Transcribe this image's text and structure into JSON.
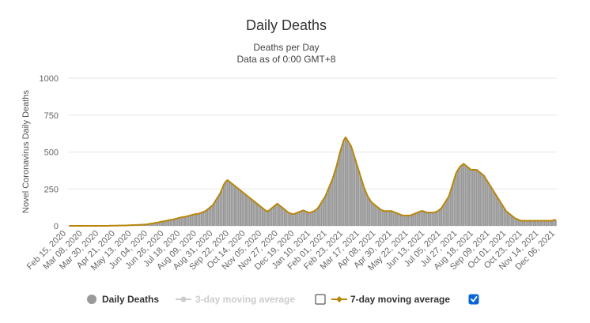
{
  "chart_data": {
    "type": "bar",
    "title": "Daily Deaths",
    "subtitle_line1": "Deaths per Day",
    "subtitle_line2": "Data as of 0:00 GMT+8",
    "ylabel": "Novel Coronavirus Daily Deaths",
    "xlabel": "",
    "ylim": [
      0,
      1000
    ],
    "yticks": [
      "0",
      "250",
      "500",
      "750",
      "1000"
    ],
    "grid": true,
    "x_tick_labels": [
      "Feb 15, 2020",
      "Mar 08, 2020",
      "Mar 30, 2020",
      "Apr 21, 2020",
      "May 13, 2020",
      "Jun 04, 2020",
      "Jun 26, 2020",
      "Jul 18, 2020",
      "Aug 09, 2020",
      "Aug 31, 2020",
      "Sep 22, 2020",
      "Oct 14, 2020",
      "Nov 05, 2020",
      "Nov 27, 2020",
      "Dec 19, 2020",
      "Jan 10, 2021",
      "Feb 01, 2021",
      "Feb 23, 2021",
      "Mar 17, 2021",
      "Apr 08, 2021",
      "Apr 30, 2021",
      "May 22, 2021",
      "Jun 13, 2021",
      "Jul 05, 2021",
      "Jul 27, 2021",
      "Aug 18, 2021",
      "Sep 09, 2021",
      "Oct 01, 2021",
      "Oct 23, 2021",
      "Nov 14, 2021",
      "Dec 06, 2021"
    ],
    "x_start": "2020-02-15",
    "x_end": "2021-12-20",
    "series": [
      {
        "name": "Daily Deaths",
        "type": "bar",
        "color": "#999999",
        "values": [
          0,
          0,
          0,
          0,
          0,
          0,
          0,
          0,
          0,
          0,
          0,
          0,
          0,
          0,
          0,
          0,
          0,
          0,
          0,
          0,
          0,
          0,
          1,
          1,
          1,
          1,
          2,
          2,
          2,
          3,
          3,
          3,
          4,
          4,
          5,
          5,
          6,
          6,
          7,
          8,
          8,
          9,
          10,
          12,
          14,
          16,
          18,
          20,
          22,
          25,
          28,
          30,
          32,
          35,
          38,
          40,
          42,
          45,
          48,
          52,
          55,
          58,
          60,
          62,
          65,
          68,
          72,
          75,
          78,
          80,
          82,
          85,
          90,
          95,
          100,
          110,
          120,
          130,
          140,
          160,
          180,
          200,
          220,
          250,
          280,
          300,
          310,
          300,
          290,
          280,
          270,
          260,
          250,
          240,
          230,
          220,
          210,
          200,
          190,
          180,
          170,
          160,
          150,
          140,
          130,
          120,
          110,
          100,
          100,
          110,
          120,
          130,
          140,
          150,
          140,
          130,
          120,
          110,
          100,
          90,
          85,
          80,
          80,
          85,
          90,
          95,
          100,
          105,
          100,
          95,
          90,
          90,
          95,
          100,
          110,
          120,
          140,
          160,
          180,
          200,
          230,
          260,
          290,
          320,
          360,
          400,
          450,
          500,
          540,
          580,
          600,
          580,
          560,
          540,
          500,
          460,
          420,
          380,
          340,
          300,
          260,
          230,
          200,
          180,
          160,
          150,
          140,
          130,
          120,
          110,
          105,
          100,
          100,
          100,
          100,
          100,
          95,
          90,
          85,
          80,
          75,
          70,
          70,
          70,
          70,
          70,
          75,
          80,
          85,
          90,
          95,
          100,
          100,
          95,
          90,
          90,
          90,
          90,
          90,
          95,
          100,
          110,
          120,
          140,
          160,
          180,
          200,
          240,
          280,
          320,
          360,
          380,
          400,
          410,
          420,
          410,
          400,
          390,
          380,
          380,
          380,
          380,
          370,
          360,
          350,
          340,
          320,
          300,
          280,
          260,
          240,
          220,
          200,
          180,
          160,
          140,
          120,
          100,
          90,
          80,
          70,
          60,
          50,
          45,
          40,
          35,
          35,
          35,
          35,
          35,
          35,
          35,
          35,
          35,
          35,
          35,
          35,
          35,
          35,
          35,
          35,
          35,
          35,
          40,
          40
        ]
      },
      {
        "name": "3-day moving average",
        "type": "line",
        "color": "#cccccc",
        "enabled": false,
        "checked": false
      },
      {
        "name": "7-day moving average",
        "type": "line",
        "color": "#b8860b",
        "enabled": true,
        "checked": true,
        "values": [
          0,
          0,
          0,
          0,
          0,
          0,
          0,
          0,
          0,
          0,
          0,
          0,
          0,
          0,
          0,
          0,
          0,
          0,
          0,
          0,
          0,
          0,
          1,
          1,
          1,
          1,
          2,
          2,
          2,
          3,
          3,
          3,
          4,
          4,
          5,
          5,
          6,
          6,
          7,
          8,
          8,
          9,
          10,
          12,
          14,
          16,
          18,
          20,
          22,
          25,
          28,
          30,
          32,
          35,
          38,
          40,
          42,
          45,
          48,
          52,
          55,
          58,
          60,
          62,
          65,
          68,
          72,
          75,
          78,
          80,
          82,
          85,
          90,
          95,
          100,
          110,
          120,
          130,
          140,
          160,
          180,
          200,
          220,
          250,
          280,
          300,
          310,
          300,
          290,
          280,
          270,
          260,
          250,
          240,
          230,
          220,
          210,
          200,
          190,
          180,
          170,
          160,
          150,
          140,
          130,
          120,
          110,
          100,
          100,
          110,
          120,
          130,
          140,
          150,
          140,
          130,
          120,
          110,
          100,
          90,
          85,
          80,
          80,
          85,
          90,
          95,
          100,
          105,
          100,
          95,
          90,
          90,
          95,
          100,
          110,
          120,
          140,
          160,
          180,
          200,
          230,
          260,
          290,
          320,
          360,
          400,
          450,
          500,
          540,
          580,
          600,
          580,
          560,
          540,
          500,
          460,
          420,
          380,
          340,
          300,
          260,
          230,
          200,
          180,
          160,
          150,
          140,
          130,
          120,
          110,
          105,
          100,
          100,
          100,
          100,
          100,
          95,
          90,
          85,
          80,
          75,
          70,
          70,
          70,
          70,
          70,
          75,
          80,
          85,
          90,
          95,
          100,
          100,
          95,
          90,
          90,
          90,
          90,
          90,
          95,
          100,
          110,
          120,
          140,
          160,
          180,
          200,
          240,
          280,
          320,
          360,
          380,
          400,
          410,
          420,
          410,
          400,
          390,
          380,
          380,
          380,
          380,
          370,
          360,
          350,
          340,
          320,
          300,
          280,
          260,
          240,
          220,
          200,
          180,
          160,
          140,
          120,
          100,
          90,
          80,
          70,
          60,
          50,
          45,
          40,
          35,
          35,
          35,
          35,
          35,
          35,
          35,
          35,
          35,
          35,
          35,
          35,
          35,
          35,
          35,
          35,
          35,
          35,
          40,
          40
        ]
      }
    ],
    "legend": "bottom"
  }
}
